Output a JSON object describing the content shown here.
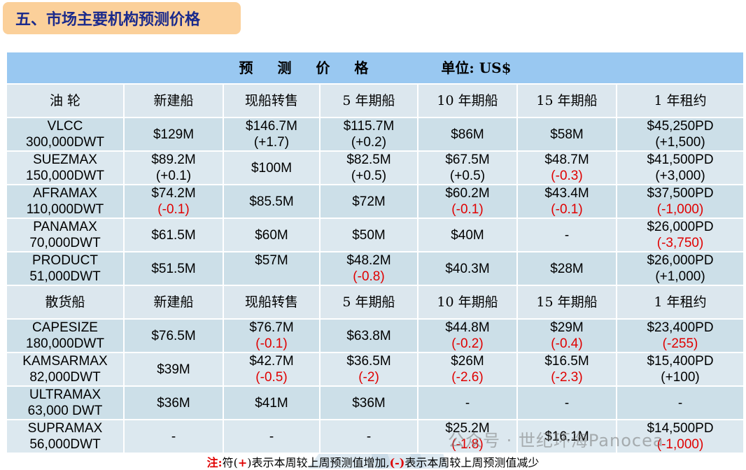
{
  "title": "五、市场主要机构预测价格",
  "header": {
    "title": "预 测 价 格",
    "unit": "单位: US$"
  },
  "tanker_headers": [
    "油 轮",
    "新建船",
    "现船转售",
    "5 年期船",
    "10 年期船",
    "15 年期船",
    "1 年租约"
  ],
  "tanker_rows": [
    {
      "name": "VLCC",
      "dwt": "300,000DWT",
      "cells": [
        {
          "v": "$129M",
          "d": ""
        },
        {
          "v": "$146.7M",
          "d": "(+1.7)"
        },
        {
          "v": "$115.7M",
          "d": "(+0.2)"
        },
        {
          "v": "$86M",
          "d": ""
        },
        {
          "v": "$58M",
          "d": ""
        },
        {
          "v": "$45,250PD",
          "d": "(+1,500)"
        }
      ]
    },
    {
      "name": "SUEZMAX",
      "dwt": "150,000DWT",
      "cells": [
        {
          "v": "$89.2M",
          "d": "(+0.1)"
        },
        {
          "v": "$100M",
          "d": ""
        },
        {
          "v": "$82.5M",
          "d": "(+0.5)"
        },
        {
          "v": "$67.5M",
          "d": "(+0.5)"
        },
        {
          "v": "$48.7M",
          "d": "(-0.3)"
        },
        {
          "v": "$41,500PD",
          "d": "(+3,000)"
        }
      ]
    },
    {
      "name": "AFRAMAX",
      "dwt": "110,000DWT",
      "cells": [
        {
          "v": "$74.2M",
          "d": "(-0.1)"
        },
        {
          "v": "$85.5M",
          "d": ""
        },
        {
          "v": "$72M",
          "d": ""
        },
        {
          "v": "$60.2M",
          "d": "(-0.1)"
        },
        {
          "v": "$43.4M",
          "d": "(-0.1)"
        },
        {
          "v": "$37,500PD",
          "d": "(-1,000)"
        }
      ]
    },
    {
      "name": "PANAMAX",
      "dwt": "70,000DWT",
      "cells": [
        {
          "v": "$61.5M",
          "d": ""
        },
        {
          "v": "$60M",
          "d": ""
        },
        {
          "v": "$50M",
          "d": ""
        },
        {
          "v": "$40M",
          "d": ""
        },
        {
          "v": "-",
          "d": ""
        },
        {
          "v": "$26,000PD",
          "d": "(-3,750)"
        }
      ]
    },
    {
      "name": "PRODUCT",
      "dwt": "51,000DWT",
      "cells": [
        {
          "v": "$51.5M",
          "d": ""
        },
        {
          "v": "$57M",
          "d": "",
          "top": true
        },
        {
          "v": "$48.2M",
          "d": "(-0.8)"
        },
        {
          "v": "$40.3M",
          "d": ""
        },
        {
          "v": "$28M",
          "d": ""
        },
        {
          "v": "$26,000PD",
          "d": "(+1,000)"
        }
      ]
    }
  ],
  "bulk_headers": [
    "散货船",
    "新建船",
    "现船转售",
    "5 年期船",
    "10 年期船",
    "15 年期船",
    "1 年租约"
  ],
  "bulk_rows": [
    {
      "name": "CAPESIZE",
      "dwt": "180,000DWT",
      "cells": [
        {
          "v": "$76.5M",
          "d": ""
        },
        {
          "v": "$76.7M",
          "d": "(-0.1)"
        },
        {
          "v": "$63.8M",
          "d": ""
        },
        {
          "v": "$44.8M",
          "d": "(-0.2)"
        },
        {
          "v": "$29M",
          "d": "(-0.4)"
        },
        {
          "v": "$23,400PD",
          "d": "(-255)"
        }
      ]
    },
    {
      "name": "KAMSARMAX",
      "dwt": "82,000DWT",
      "cells": [
        {
          "v": "$39M",
          "d": ""
        },
        {
          "v": "$42.7M",
          "d": "(-0.5)"
        },
        {
          "v": "$36.5M",
          "d": "(-2)"
        },
        {
          "v": "$26M",
          "d": "(-2.6)"
        },
        {
          "v": "$16.5M",
          "d": "(-2.3)"
        },
        {
          "v": "$15,400PD",
          "d": "(+100)"
        }
      ]
    },
    {
      "name": "ULTRAMAX",
      "dwt": "63,000 DWT",
      "cells": [
        {
          "v": "$36M",
          "d": ""
        },
        {
          "v": "$41M",
          "d": ""
        },
        {
          "v": "$36M",
          "d": ""
        },
        {
          "v": "-",
          "d": ""
        },
        {
          "v": "-",
          "d": ""
        },
        {
          "v": "-",
          "d": ""
        }
      ]
    },
    {
      "name": "SUPRAMAX",
      "dwt": "56,000DWT",
      "cells": [
        {
          "v": "-",
          "d": ""
        },
        {
          "v": "-",
          "d": ""
        },
        {
          "v": "-",
          "d": ""
        },
        {
          "v": "$25.2M",
          "d": "(-1.8)"
        },
        {
          "v": "$16.1M",
          "d": ""
        },
        {
          "v": "$14,500PD",
          "d": "(-1,000)"
        }
      ]
    }
  ],
  "note": {
    "label": "注:",
    "p1": "符(",
    "plus": "+",
    "p2": ")表示本周较上周预测值增加,",
    "minus": "(-)",
    "p3": "表示本周较上周预测值减少"
  },
  "watermark_text": "公众号 · 世纪环海Panocea",
  "colors": {
    "negative": "#e00000",
    "header_bg": "#99c8f1",
    "title_bg": "#fbd09a",
    "title_text": "#1a2a8c"
  }
}
